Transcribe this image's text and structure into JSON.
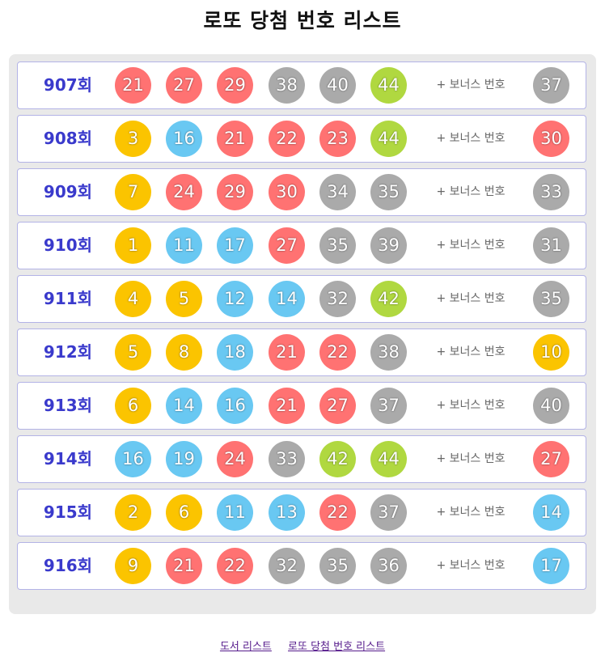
{
  "page": {
    "title": "로또 당첨 번호 리스트"
  },
  "colors": {
    "yellow": "#fbc400",
    "blue": "#69c8f2",
    "red": "#ff7272",
    "gray": "#aaaaaa",
    "green": "#b0d840",
    "round_text": "#3a3acc",
    "row_border": "#b3b3e6",
    "panel_bg": "#e9e9e9"
  },
  "bonus_label": "+ 보너스 번호",
  "draws": [
    {
      "round": "907회",
      "numbers": [
        21,
        27,
        29,
        38,
        40,
        44
      ],
      "bonus": 37
    },
    {
      "round": "908회",
      "numbers": [
        3,
        16,
        21,
        22,
        23,
        44
      ],
      "bonus": 30
    },
    {
      "round": "909회",
      "numbers": [
        7,
        24,
        29,
        30,
        34,
        35
      ],
      "bonus": 33
    },
    {
      "round": "910회",
      "numbers": [
        1,
        11,
        17,
        27,
        35,
        39
      ],
      "bonus": 31
    },
    {
      "round": "911회",
      "numbers": [
        4,
        5,
        12,
        14,
        32,
        42
      ],
      "bonus": 35
    },
    {
      "round": "912회",
      "numbers": [
        5,
        8,
        18,
        21,
        22,
        38
      ],
      "bonus": 10
    },
    {
      "round": "913회",
      "numbers": [
        6,
        14,
        16,
        21,
        27,
        37
      ],
      "bonus": 40
    },
    {
      "round": "914회",
      "numbers": [
        16,
        19,
        24,
        33,
        42,
        44
      ],
      "bonus": 27
    },
    {
      "round": "915회",
      "numbers": [
        2,
        6,
        11,
        13,
        22,
        37
      ],
      "bonus": 14
    },
    {
      "round": "916회",
      "numbers": [
        9,
        21,
        22,
        32,
        35,
        36
      ],
      "bonus": 17
    }
  ],
  "footer": {
    "links": [
      "도서 리스트",
      "로또 당첨 번호 리스트"
    ]
  }
}
